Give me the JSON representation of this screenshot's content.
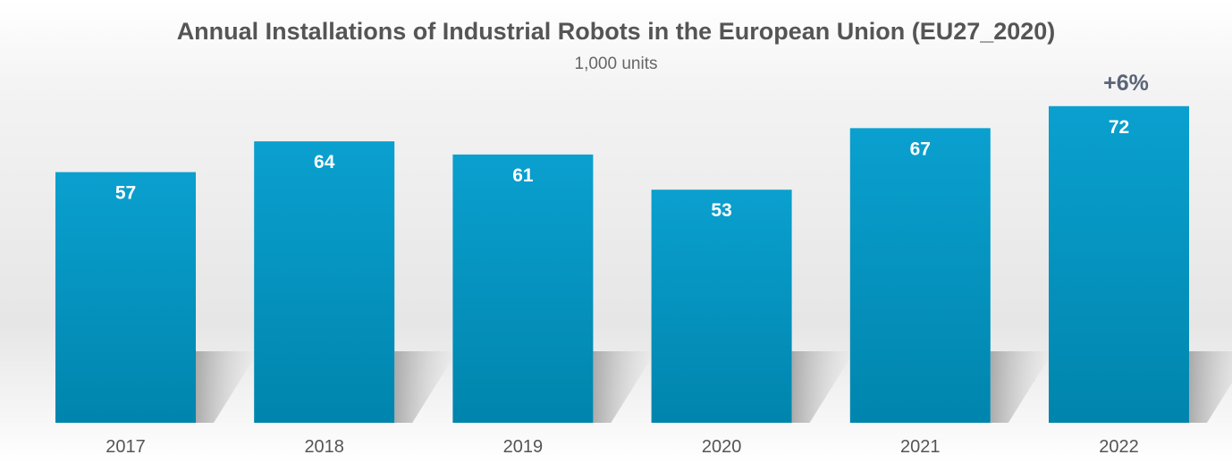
{
  "chart_data": {
    "type": "bar",
    "title": "Annual Installations of Industrial Robots in the European Union (EU27_2020)",
    "subtitle": "1,000 units",
    "categories": [
      "2017",
      "2018",
      "2019",
      "2020",
      "2021",
      "2022"
    ],
    "values": [
      57,
      64,
      61,
      53,
      67,
      72
    ],
    "annotation": {
      "category": "2022",
      "text": "+6%"
    },
    "xlabel": "",
    "ylabel": "",
    "ylim": [
      0,
      72
    ],
    "grid": false,
    "colors": {
      "bar_top": "#0aa0cf",
      "bar_bottom": "#0085ad",
      "label": "#ffffff",
      "annotation": "#5a6478",
      "axis_text": "#555555"
    }
  }
}
